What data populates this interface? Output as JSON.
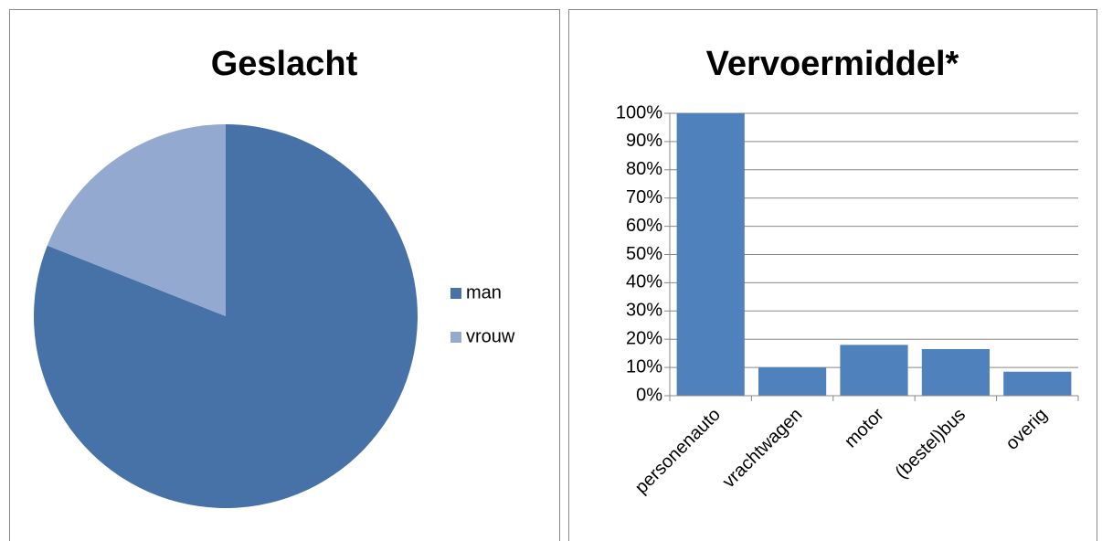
{
  "chart_data": [
    {
      "type": "pie",
      "title": "Geslacht",
      "categories": [
        "man",
        "vrouw"
      ],
      "values": [
        81,
        19
      ],
      "colors": [
        "#4672a8",
        "#94a9d0"
      ],
      "legend": "right"
    },
    {
      "type": "bar",
      "title": "Vervoermiddel*",
      "categories": [
        "personenauto",
        "vrachtwagen",
        "motor",
        "(bestel)bus",
        "overig"
      ],
      "values": [
        100,
        10,
        18,
        16.5,
        8.5
      ],
      "color": "#4f81bd",
      "ylim": [
        0,
        100
      ],
      "yticks": [
        {
          "value": 0,
          "label": "0%"
        },
        {
          "value": 10,
          "label": "10%"
        },
        {
          "value": 20,
          "label": "20%"
        },
        {
          "value": 30,
          "label": "30%"
        },
        {
          "value": 40,
          "label": "40%"
        },
        {
          "value": 50,
          "label": "50%"
        },
        {
          "value": 60,
          "label": "60%"
        },
        {
          "value": 70,
          "label": "70%"
        },
        {
          "value": 80,
          "label": "80%"
        },
        {
          "value": 90,
          "label": "90%"
        },
        {
          "value": 100,
          "label": "100%"
        }
      ],
      "grid": true
    }
  ]
}
